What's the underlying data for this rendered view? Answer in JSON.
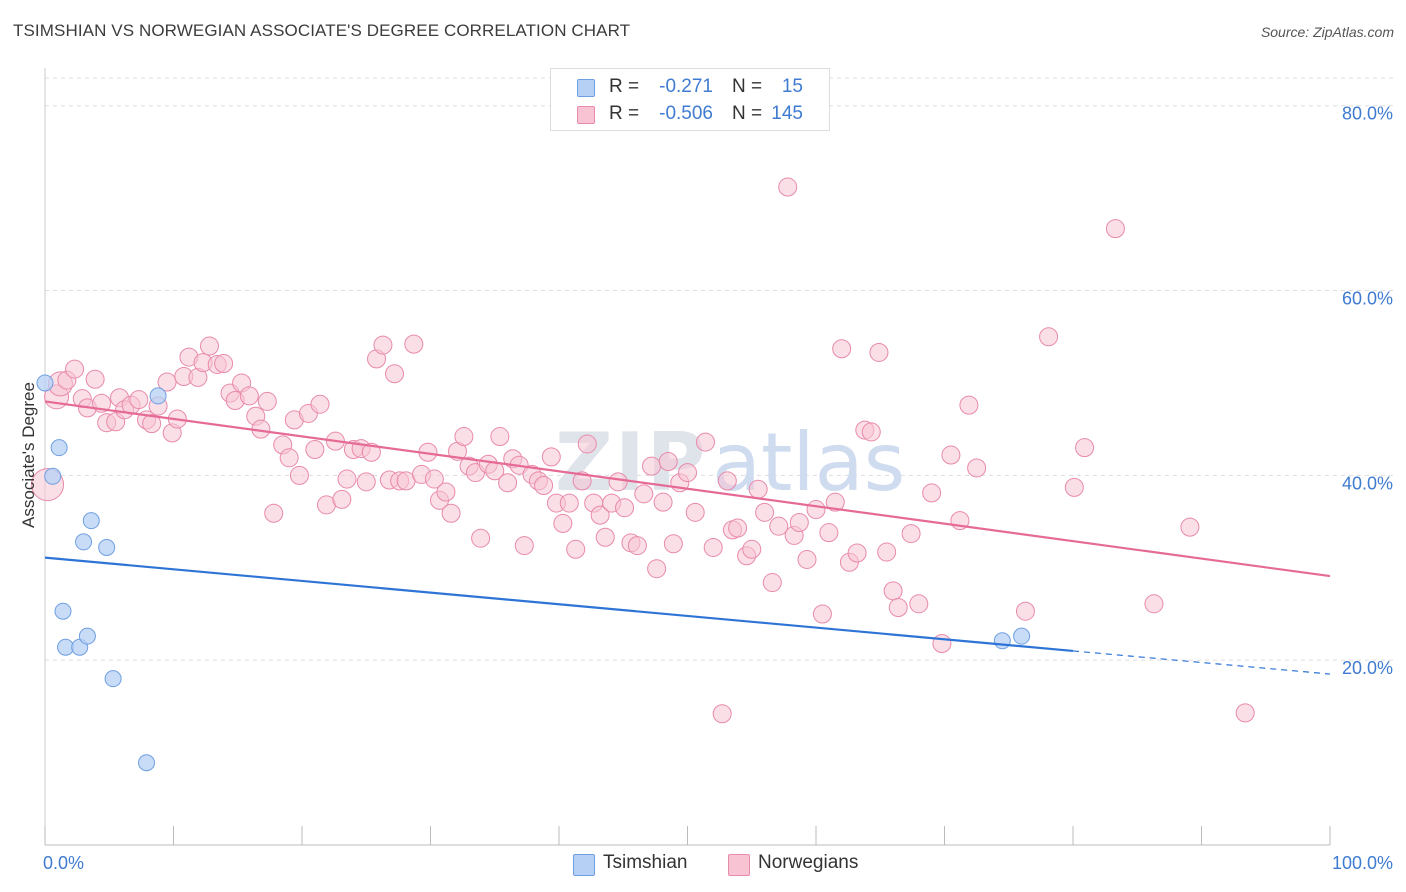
{
  "header": {
    "title": "TSIMSHIAN VS NORWEGIAN ASSOCIATE'S DEGREE CORRELATION CHART",
    "source": "Source: ZipAtlas.com"
  },
  "legend": {
    "rows": [
      {
        "r_label": "R =",
        "r_value": "-0.271",
        "n_label": "N =",
        "n_value": "15"
      },
      {
        "r_label": "R =",
        "r_value": "-0.506",
        "n_label": "N =",
        "n_value": "145"
      }
    ]
  },
  "bottom_legend": [
    "Tsimshian",
    "Norwegians"
  ],
  "colors": {
    "tsimshian_fill": "#b6d0f5",
    "tsimshian_stroke": "#6f9fe0",
    "tsimshian_line": "#2e74d6",
    "norwegian_fill": "#f8c4d4",
    "norwegian_stroke": "#e88aab",
    "norwegian_line": "#e56b96",
    "axis_label": "#3f7bd0",
    "grid": "#dddddd"
  },
  "chart_data": {
    "type": "scatter",
    "title": "TSIMSHIAN VS NORWEGIAN ASSOCIATE'S DEGREE CORRELATION CHART",
    "xlabel": "",
    "ylabel": "Associate's Degree",
    "xlim": [
      0,
      100
    ],
    "ylim": [
      0,
      83
    ],
    "x_tick_labels": [
      "0.0%",
      "100.0%"
    ],
    "y_ticks": [
      20,
      40,
      60,
      80
    ],
    "y_tick_labels": [
      "20.0%",
      "40.0%",
      "60.0%",
      "80.0%"
    ],
    "grid": true,
    "legend_position": "top-center",
    "watermark": "ZIPatlas",
    "series": [
      {
        "name": "Tsimshian",
        "r": -0.271,
        "n": 15,
        "points": [
          [
            0.0,
            50.0
          ],
          [
            0.6,
            39.9
          ],
          [
            1.1,
            43.0
          ],
          [
            1.4,
            25.3
          ],
          [
            1.6,
            21.4
          ],
          [
            2.7,
            21.4
          ],
          [
            3.0,
            32.8
          ],
          [
            3.3,
            22.6
          ],
          [
            3.6,
            35.1
          ],
          [
            4.8,
            32.2
          ],
          [
            5.3,
            18.0
          ],
          [
            7.9,
            8.9
          ],
          [
            8.8,
            48.6
          ],
          [
            74.5,
            22.1
          ],
          [
            76.0,
            22.6
          ]
        ],
        "trend": {
          "x_start": 0,
          "y_start": 31.1,
          "x_end": 80,
          "y_end": 21.0,
          "dashed_to_x": 100,
          "dashed_to_y": 18.5
        }
      },
      {
        "name": "Norwegians",
        "r": -0.506,
        "n": 145,
        "points": [
          [
            0.2,
            39.0
          ],
          [
            0.9,
            48.5
          ],
          [
            1.2,
            49.9
          ],
          [
            1.7,
            50.3
          ],
          [
            2.3,
            51.5
          ],
          [
            2.9,
            48.3
          ],
          [
            3.3,
            47.3
          ],
          [
            3.9,
            50.4
          ],
          [
            4.4,
            47.8
          ],
          [
            4.8,
            45.7
          ],
          [
            5.5,
            45.8
          ],
          [
            5.8,
            48.4
          ],
          [
            6.2,
            47.1
          ],
          [
            6.7,
            47.6
          ],
          [
            7.3,
            48.2
          ],
          [
            7.9,
            46.0
          ],
          [
            8.3,
            45.6
          ],
          [
            8.8,
            47.5
          ],
          [
            9.5,
            50.1
          ],
          [
            9.9,
            44.6
          ],
          [
            10.3,
            46.1
          ],
          [
            10.8,
            50.7
          ],
          [
            11.2,
            52.8
          ],
          [
            11.9,
            50.6
          ],
          [
            12.3,
            52.2
          ],
          [
            12.8,
            54.0
          ],
          [
            13.4,
            52.0
          ],
          [
            13.9,
            52.1
          ],
          [
            14.4,
            48.9
          ],
          [
            14.8,
            48.1
          ],
          [
            15.3,
            50.0
          ],
          [
            15.9,
            48.6
          ],
          [
            16.4,
            46.4
          ],
          [
            16.8,
            45.0
          ],
          [
            17.3,
            48.0
          ],
          [
            17.8,
            35.9
          ],
          [
            18.5,
            43.3
          ],
          [
            19.0,
            41.9
          ],
          [
            19.4,
            46.0
          ],
          [
            19.8,
            40.0
          ],
          [
            20.5,
            46.7
          ],
          [
            21.0,
            42.8
          ],
          [
            21.4,
            47.7
          ],
          [
            21.9,
            36.8
          ],
          [
            22.6,
            43.7
          ],
          [
            23.1,
            37.4
          ],
          [
            23.5,
            39.6
          ],
          [
            24.0,
            42.8
          ],
          [
            24.6,
            42.9
          ],
          [
            25.0,
            39.3
          ],
          [
            25.4,
            42.5
          ],
          [
            25.8,
            52.6
          ],
          [
            26.3,
            54.1
          ],
          [
            26.8,
            39.5
          ],
          [
            27.2,
            51.0
          ],
          [
            27.6,
            39.4
          ],
          [
            28.1,
            39.4
          ],
          [
            28.7,
            54.2
          ],
          [
            29.3,
            40.1
          ],
          [
            29.8,
            42.5
          ],
          [
            30.3,
            39.6
          ],
          [
            30.7,
            37.3
          ],
          [
            31.2,
            38.2
          ],
          [
            31.6,
            35.9
          ],
          [
            32.1,
            42.6
          ],
          [
            32.6,
            44.2
          ],
          [
            33.0,
            41.0
          ],
          [
            33.5,
            40.3
          ],
          [
            33.9,
            33.2
          ],
          [
            34.5,
            41.2
          ],
          [
            35.0,
            40.5
          ],
          [
            35.4,
            44.2
          ],
          [
            36.0,
            39.2
          ],
          [
            36.4,
            41.8
          ],
          [
            36.9,
            41.1
          ],
          [
            37.3,
            32.4
          ],
          [
            37.9,
            40.1
          ],
          [
            38.4,
            39.4
          ],
          [
            38.8,
            38.9
          ],
          [
            39.4,
            42.0
          ],
          [
            39.8,
            37.0
          ],
          [
            40.3,
            34.8
          ],
          [
            40.8,
            37.0
          ],
          [
            41.3,
            32.0
          ],
          [
            41.8,
            39.4
          ],
          [
            42.2,
            43.4
          ],
          [
            42.7,
            37.0
          ],
          [
            43.2,
            35.7
          ],
          [
            43.6,
            33.3
          ],
          [
            44.1,
            37.0
          ],
          [
            44.6,
            39.3
          ],
          [
            45.1,
            36.5
          ],
          [
            45.6,
            32.7
          ],
          [
            46.1,
            32.4
          ],
          [
            46.6,
            38.0
          ],
          [
            47.2,
            41.0
          ],
          [
            47.6,
            29.9
          ],
          [
            48.1,
            37.1
          ],
          [
            48.5,
            41.5
          ],
          [
            48.9,
            32.6
          ],
          [
            49.4,
            39.2
          ],
          [
            50.0,
            40.3
          ],
          [
            50.6,
            36.0
          ],
          [
            51.4,
            43.6
          ],
          [
            52.0,
            32.2
          ],
          [
            52.7,
            14.2
          ],
          [
            53.1,
            39.4
          ],
          [
            53.5,
            34.1
          ],
          [
            53.9,
            34.3
          ],
          [
            54.6,
            31.3
          ],
          [
            55.0,
            32.0
          ],
          [
            55.5,
            38.5
          ],
          [
            56.0,
            36.0
          ],
          [
            56.6,
            28.4
          ],
          [
            57.1,
            34.5
          ],
          [
            57.8,
            71.2
          ],
          [
            58.3,
            33.5
          ],
          [
            58.7,
            34.9
          ],
          [
            59.3,
            30.9
          ],
          [
            60.0,
            36.3
          ],
          [
            60.5,
            25.0
          ],
          [
            61.0,
            33.8
          ],
          [
            61.5,
            37.1
          ],
          [
            62.0,
            53.7
          ],
          [
            62.6,
            30.6
          ],
          [
            63.2,
            31.6
          ],
          [
            63.8,
            44.9
          ],
          [
            64.3,
            44.7
          ],
          [
            64.9,
            53.3
          ],
          [
            65.5,
            31.7
          ],
          [
            66.0,
            27.5
          ],
          [
            66.4,
            25.7
          ],
          [
            67.4,
            33.7
          ],
          [
            68.0,
            26.1
          ],
          [
            69.0,
            38.1
          ],
          [
            69.8,
            21.8
          ],
          [
            70.5,
            42.2
          ],
          [
            71.2,
            35.1
          ],
          [
            71.9,
            47.6
          ],
          [
            72.5,
            40.8
          ],
          [
            76.3,
            25.3
          ],
          [
            78.1,
            55.0
          ],
          [
            80.1,
            38.7
          ],
          [
            80.9,
            43.0
          ],
          [
            83.3,
            66.7
          ],
          [
            86.3,
            26.1
          ],
          [
            89.1,
            34.4
          ],
          [
            93.4,
            14.3
          ]
        ],
        "trend": {
          "x_start": 0,
          "y_start": 48.0,
          "x_end": 100,
          "y_end": 29.1
        }
      }
    ]
  }
}
